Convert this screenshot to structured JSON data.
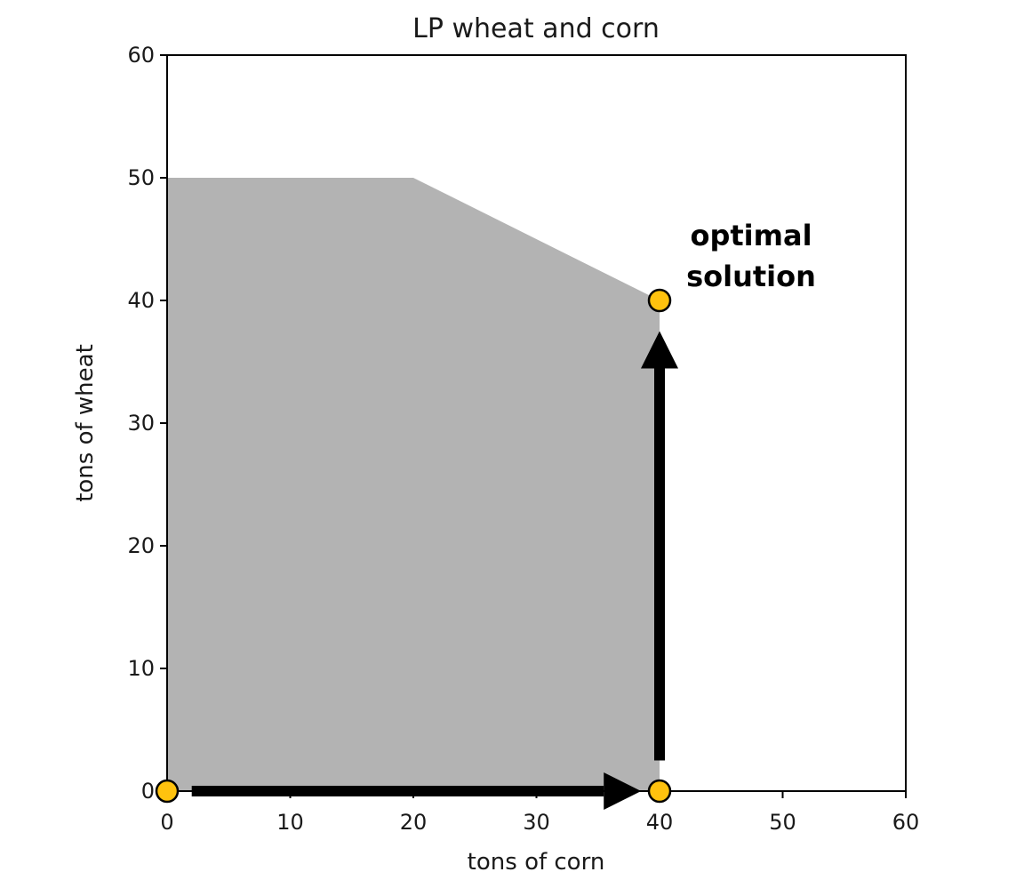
{
  "chart_data": {
    "type": "area",
    "title": "LP wheat and corn",
    "xlabel": "tons of corn",
    "ylabel": "tons of wheat",
    "xlim": [
      0,
      60
    ],
    "ylim": [
      0,
      60
    ],
    "xticks": [
      0,
      10,
      20,
      30,
      40,
      50,
      60
    ],
    "yticks": [
      0,
      10,
      20,
      30,
      40,
      50,
      60
    ],
    "grid": false,
    "feasible_region": {
      "x": [
        0,
        0,
        20,
        40,
        40
      ],
      "y": [
        0,
        50,
        50,
        40,
        0
      ],
      "color": "#b3b3b3"
    },
    "points": [
      {
        "x": 0,
        "y": 0
      },
      {
        "x": 40,
        "y": 0
      },
      {
        "x": 40,
        "y": 40
      }
    ],
    "point_color": "#ffc20e",
    "arrows": [
      {
        "from": [
          2,
          0
        ],
        "to": [
          38.5,
          0
        ]
      },
      {
        "from": [
          40,
          2.5
        ],
        "to": [
          40,
          37.5
        ]
      }
    ],
    "annotation": {
      "lines": [
        "optimal",
        "solution"
      ],
      "x": 40,
      "y": 40
    }
  }
}
